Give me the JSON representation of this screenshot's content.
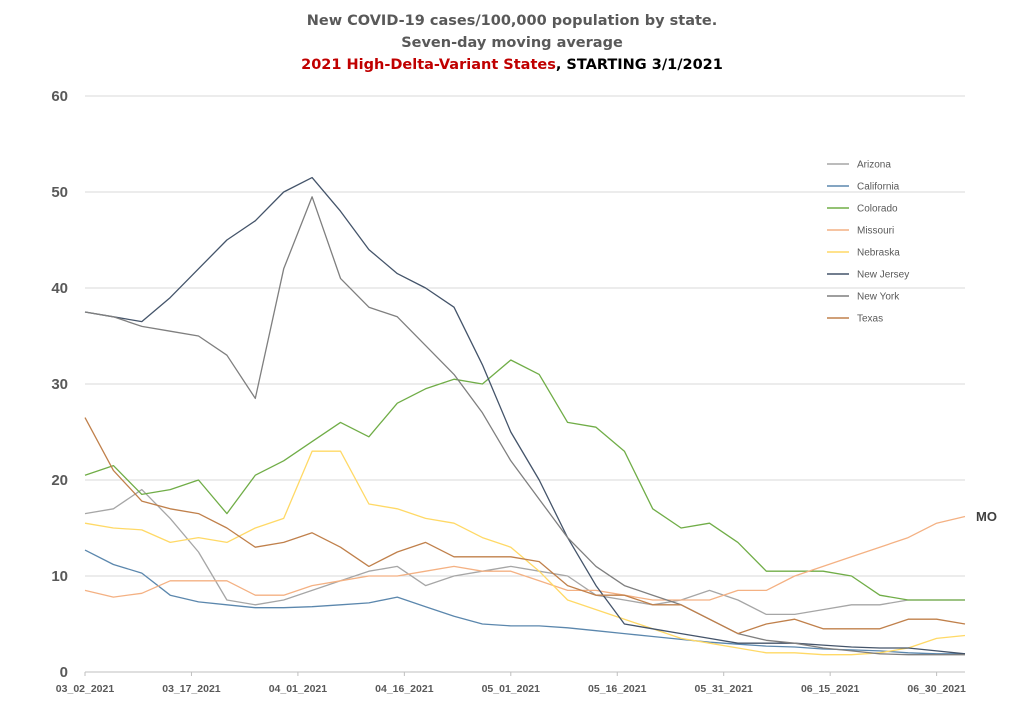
{
  "title": {
    "line1": "New COVID-19 cases/100,000 population by state.",
    "line2": "Seven-day moving average",
    "line3_highlight": "2021 High-Delta-Variant States",
    "line3_rest": ", STARTING 3/1/2021"
  },
  "chart_data": {
    "type": "line",
    "title": "New COVID-19 cases/100,000 population by state. Seven-day moving average",
    "subtitle": "2021 High-Delta-Variant States, STARTING 3/1/2021",
    "xlabel": "",
    "ylabel": "",
    "ylim": [
      0,
      60
    ],
    "yticks": [
      0,
      10,
      20,
      30,
      40,
      50,
      60
    ],
    "grid": "horizontal",
    "legend_position": "right",
    "x_dates": [
      "2021-03-02",
      "2021-03-06",
      "2021-03-10",
      "2021-03-14",
      "2021-03-18",
      "2021-03-22",
      "2021-03-26",
      "2021-03-30",
      "2021-04-03",
      "2021-04-07",
      "2021-04-11",
      "2021-04-15",
      "2021-04-19",
      "2021-04-23",
      "2021-04-27",
      "2021-05-01",
      "2021-05-05",
      "2021-05-09",
      "2021-05-13",
      "2021-05-17",
      "2021-05-21",
      "2021-05-25",
      "2021-05-29",
      "2021-06-02",
      "2021-06-06",
      "2021-06-10",
      "2021-06-14",
      "2021-06-18",
      "2021-06-22",
      "2021-06-26",
      "2021-06-30",
      "2021-07-04"
    ],
    "xtick_labels": [
      "03_02_2021",
      "03_17_2021",
      "04_01_2021",
      "04_16_2021",
      "05_01_2021",
      "05_16_2021",
      "05_31_2021",
      "06_15_2021",
      "06_30_2021"
    ],
    "series": [
      {
        "name": "Arizona",
        "color": "#a6a6a6",
        "values": [
          16.5,
          17,
          19,
          16,
          12.5,
          7.5,
          7,
          7.5,
          8.5,
          9.5,
          10.5,
          11,
          9,
          10,
          10.5,
          11,
          10.5,
          10,
          8,
          7.5,
          7,
          7.5,
          8.5,
          7.5,
          6,
          6,
          6.5,
          7,
          7,
          7.5,
          7.5,
          7.5
        ]
      },
      {
        "name": "California",
        "color": "#5b87ad",
        "values": [
          12.7,
          11.2,
          10.3,
          8,
          7.3,
          7,
          6.7,
          6.7,
          6.8,
          7,
          7.2,
          7.8,
          6.8,
          5.8,
          5,
          4.8,
          4.8,
          4.6,
          4.3,
          4,
          3.7,
          3.4,
          3.1,
          2.9,
          2.7,
          2.6,
          2.4,
          2.3,
          2.2,
          2,
          1.9,
          1.9
        ]
      },
      {
        "name": "Colorado",
        "color": "#70ad47",
        "values": [
          20.5,
          21.5,
          18.5,
          19,
          20,
          16.5,
          20.5,
          22,
          24,
          26,
          24.5,
          28,
          29.5,
          30.5,
          30,
          32.5,
          31,
          26,
          25.5,
          23,
          17,
          15,
          15.5,
          13.5,
          10.5,
          10.5,
          10.5,
          10,
          8,
          7.5,
          7.5,
          7.5
        ]
      },
      {
        "name": "Missouri",
        "color": "#f4b183",
        "values": [
          8.5,
          7.8,
          8.2,
          9.5,
          9.5,
          9.5,
          8,
          8,
          9,
          9.5,
          10,
          10,
          10.5,
          11,
          10.5,
          10.5,
          9.5,
          8.5,
          8.5,
          8,
          7.5,
          7.5,
          7.5,
          8.5,
          8.5,
          10,
          11,
          12,
          13,
          14,
          15.5,
          16.2
        ]
      },
      {
        "name": "Nebraska",
        "color": "#ffd966",
        "values": [
          15.5,
          15,
          14.8,
          13.5,
          14,
          13.5,
          15,
          16,
          23,
          23,
          17.5,
          17,
          16,
          15.5,
          14,
          13,
          10.5,
          7.5,
          6.5,
          5.5,
          4.5,
          3.5,
          3,
          2.5,
          2,
          2,
          1.8,
          1.8,
          2,
          2.5,
          3.5,
          3.8
        ]
      },
      {
        "name": "New Jersey",
        "color": "#44546a",
        "values": [
          37.5,
          37,
          36.5,
          39,
          42,
          45,
          47,
          50,
          51.5,
          48,
          44,
          41.5,
          40,
          38,
          32,
          25,
          20,
          14,
          9,
          5,
          4.5,
          4,
          3.5,
          3,
          3,
          3,
          2.8,
          2.6,
          2.5,
          2.5,
          2.2,
          1.9
        ]
      },
      {
        "name": "New York",
        "color": "#7f7f7f",
        "values": [
          37.5,
          37,
          36,
          35.5,
          35,
          33,
          28.5,
          42,
          49.5,
          41,
          38,
          37,
          34,
          31,
          27,
          22,
          18,
          14,
          11,
          9,
          8,
          7,
          5.5,
          4,
          3.3,
          3,
          2.5,
          2.2,
          1.9,
          1.8,
          1.8,
          1.8
        ]
      },
      {
        "name": "Texas",
        "color": "#c0804b",
        "values": [
          26.5,
          21,
          17.8,
          17,
          16.5,
          15,
          13,
          13.5,
          14.5,
          13,
          11,
          12.5,
          13.5,
          12,
          12,
          12,
          11.5,
          9,
          8,
          8,
          7,
          7,
          5.5,
          4,
          5,
          5.5,
          4.5,
          4.5,
          4.5,
          5.5,
          5.5,
          5
        ]
      }
    ],
    "annotations": [
      "MO"
    ]
  }
}
